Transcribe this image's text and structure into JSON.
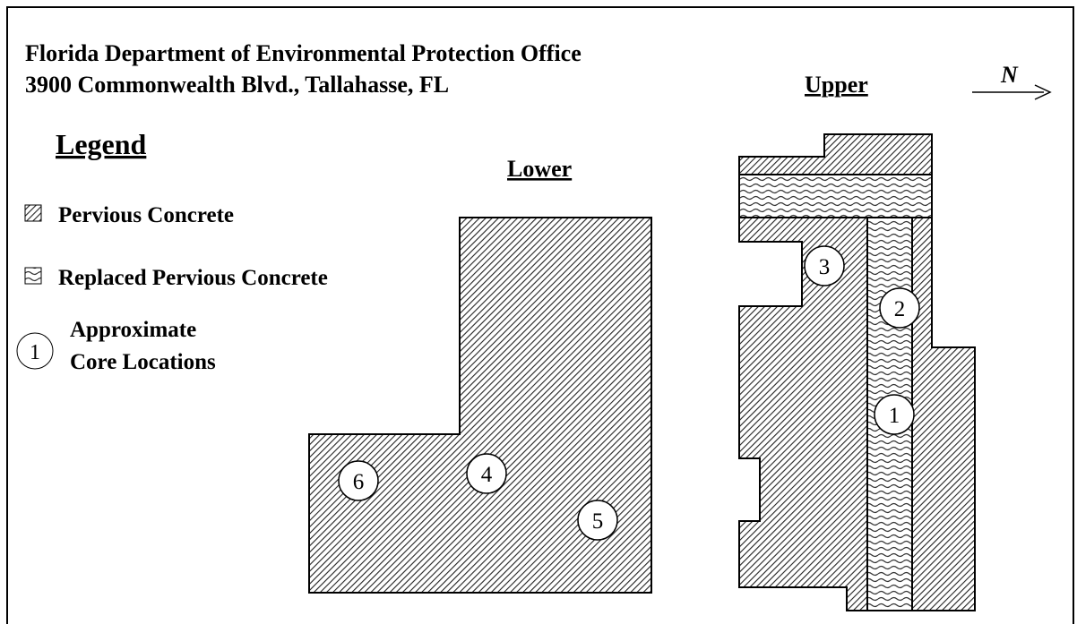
{
  "header": {
    "line1": "Florida Department of Environmental Protection Office",
    "line2": "3900 Commonwealth Blvd., Tallahasse, FL"
  },
  "legend": {
    "title": "Legend",
    "items": [
      "Pervious Concrete",
      "Replaced Pervious Concrete"
    ],
    "core_line1": "Approximate",
    "core_line2": "Core Locations",
    "core_symbol": "1"
  },
  "sections": {
    "lower": "Lower",
    "upper": "Upper"
  },
  "north": "N",
  "cores": [
    "1",
    "2",
    "3",
    "4",
    "5",
    "6"
  ]
}
